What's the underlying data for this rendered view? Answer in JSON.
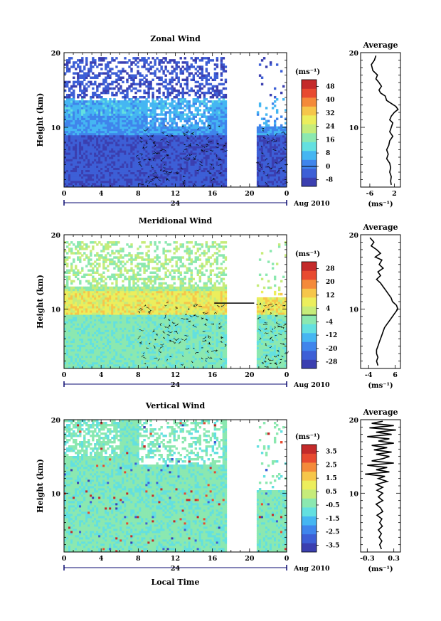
{
  "figure": {
    "xlabel": "Local Time",
    "date_label": "Aug 2010",
    "day_label": "24"
  },
  "chart_data": [
    {
      "type": "heatmap",
      "title": "Zonal Wind",
      "ylabel": "Height (km)",
      "ylim": [
        2,
        20
      ],
      "yticks": [
        "20",
        "10"
      ],
      "xticks": [
        "0",
        "4",
        "8",
        "12",
        "16",
        "20",
        "0"
      ],
      "unit": "(ms⁻¹)",
      "colorbar": {
        "ticks": [
          "48",
          "40",
          "32",
          "24",
          "16",
          "8",
          "0",
          "-8"
        ],
        "range": [
          -12,
          52
        ],
        "zero_line": 0
      },
      "data_gap_hours": [
        17.6,
        20.8
      ],
      "profile": {
        "title": "Average",
        "xticks": [
          "-6",
          "2"
        ],
        "xlim": [
          -9,
          4
        ],
        "unit": "(ms⁻¹)",
        "yticks": [
          "20",
          "10"
        ],
        "points": [
          [
            -4,
            19.6
          ],
          [
            -4.5,
            19.0
          ],
          [
            -5.5,
            18.4
          ],
          [
            -5.0,
            17.6
          ],
          [
            -3.5,
            17.0
          ],
          [
            -4.0,
            16.5
          ],
          [
            -3.0,
            16.0
          ],
          [
            -2.2,
            15.5
          ],
          [
            -3.0,
            15.0
          ],
          [
            -2.5,
            14.6
          ],
          [
            -1.0,
            14.2
          ],
          [
            -0.5,
            13.6
          ],
          [
            1.0,
            13.2
          ],
          [
            2.5,
            12.8
          ],
          [
            3.2,
            12.4
          ],
          [
            2.0,
            12.0
          ],
          [
            1.0,
            11.5
          ],
          [
            0.5,
            11.0
          ],
          [
            1.5,
            10.6
          ],
          [
            1.0,
            10.0
          ],
          [
            0.5,
            9.4
          ],
          [
            1.5,
            8.8
          ],
          [
            0.5,
            8.2
          ],
          [
            0.2,
            7.6
          ],
          [
            -0.5,
            7.0
          ],
          [
            0.0,
            6.4
          ],
          [
            -0.5,
            5.8
          ],
          [
            0.5,
            5.2
          ],
          [
            0.8,
            4.6
          ],
          [
            0.5,
            4.0
          ],
          [
            1.0,
            3.4
          ],
          [
            0.8,
            2.8
          ],
          [
            1.0,
            2.3
          ]
        ]
      }
    },
    {
      "type": "heatmap",
      "title": "Meridional Wind",
      "ylabel": "Height (km)",
      "ylim": [
        2,
        20
      ],
      "yticks": [
        "20",
        "10"
      ],
      "xticks": [
        "0",
        "4",
        "8",
        "12",
        "16",
        "20",
        "0"
      ],
      "unit": "(ms⁻¹)",
      "colorbar": {
        "ticks": [
          "28",
          "20",
          "12",
          "4",
          "-4",
          "-12",
          "-20",
          "-28"
        ],
        "range": [
          -32,
          32
        ],
        "zero_line": 0
      },
      "data_gap_hours": [
        17.6,
        20.8
      ],
      "profile": {
        "title": "Average",
        "xticks": [
          "-4",
          "6"
        ],
        "xlim": [
          -7,
          8
        ],
        "unit": "(ms⁻¹)",
        "yticks": [
          "20",
          "10"
        ],
        "points": [
          [
            -3.5,
            19.6
          ],
          [
            -2.0,
            19.0
          ],
          [
            -3.0,
            18.5
          ],
          [
            -1.0,
            18.0
          ],
          [
            0.5,
            17.5
          ],
          [
            -1.5,
            17.0
          ],
          [
            1.0,
            16.6
          ],
          [
            0.0,
            16.0
          ],
          [
            1.5,
            15.5
          ],
          [
            -0.5,
            15.0
          ],
          [
            0.5,
            14.5
          ],
          [
            -1.0,
            14.0
          ],
          [
            0.5,
            13.5
          ],
          [
            1.5,
            13.0
          ],
          [
            2.5,
            12.5
          ],
          [
            3.5,
            12.0
          ],
          [
            4.5,
            11.5
          ],
          [
            5.0,
            11.0
          ],
          [
            6.5,
            10.5
          ],
          [
            7.0,
            10.0
          ],
          [
            6.0,
            9.5
          ],
          [
            5.0,
            9.0
          ],
          [
            4.0,
            8.5
          ],
          [
            3.0,
            8.0
          ],
          [
            2.0,
            7.5
          ],
          [
            1.5,
            7.0
          ],
          [
            1.0,
            6.5
          ],
          [
            0.5,
            6.0
          ],
          [
            0.0,
            5.5
          ],
          [
            -0.5,
            5.0
          ],
          [
            -1.0,
            4.5
          ],
          [
            -1.0,
            4.0
          ],
          [
            -0.5,
            3.5
          ],
          [
            -1.0,
            3.0
          ],
          [
            -0.5,
            2.4
          ]
        ]
      }
    },
    {
      "type": "heatmap",
      "title": "Vertical Wind",
      "ylabel": "Height (km)",
      "ylim": [
        2,
        20
      ],
      "yticks": [
        "20",
        "10"
      ],
      "xticks": [
        "0",
        "4",
        "8",
        "12",
        "16",
        "20",
        "0"
      ],
      "unit": "(ms⁻¹)",
      "colorbar": {
        "ticks": [
          "3.5",
          "2.5",
          "1.5",
          "0.5",
          "-0.5",
          "-1.5",
          "-2.5",
          "-3.5"
        ],
        "range": [
          -4,
          4
        ],
        "zero_line": null
      },
      "data_gap_hours": [
        17.6,
        20.8
      ],
      "profile": {
        "title": "Average",
        "xticks": [
          "-0.3",
          "0.3"
        ],
        "xlim": [
          -0.45,
          0.45
        ],
        "unit": "(ms⁻¹)",
        "yticks": [
          "20",
          "10"
        ],
        "points": [
          [
            0.05,
            19.8
          ],
          [
            -0.2,
            19.5
          ],
          [
            0.3,
            19.2
          ],
          [
            -0.25,
            18.9
          ],
          [
            0.35,
            18.6
          ],
          [
            -0.1,
            18.3
          ],
          [
            0.25,
            18.0
          ],
          [
            -0.3,
            17.7
          ],
          [
            0.2,
            17.4
          ],
          [
            -0.05,
            17.1
          ],
          [
            0.3,
            16.8
          ],
          [
            -0.2,
            16.5
          ],
          [
            0.15,
            16.2
          ],
          [
            -0.15,
            15.9
          ],
          [
            0.25,
            15.6
          ],
          [
            -0.1,
            15.3
          ],
          [
            0.2,
            15.0
          ],
          [
            0.05,
            14.7
          ],
          [
            -0.2,
            14.4
          ],
          [
            0.3,
            14.1
          ],
          [
            -0.3,
            13.8
          ],
          [
            0.15,
            13.5
          ],
          [
            -0.1,
            13.2
          ],
          [
            0.2,
            12.9
          ],
          [
            -0.35,
            12.6
          ],
          [
            0.1,
            12.3
          ],
          [
            -0.05,
            12.0
          ],
          [
            0.15,
            11.6
          ],
          [
            -0.1,
            11.2
          ],
          [
            0.05,
            10.8
          ],
          [
            -0.08,
            10.4
          ],
          [
            0.05,
            10.0
          ],
          [
            -0.05,
            9.5
          ],
          [
            0.05,
            9.0
          ],
          [
            -0.1,
            8.5
          ],
          [
            0.0,
            8.0
          ],
          [
            0.05,
            7.5
          ],
          [
            -0.08,
            7.0
          ],
          [
            0.03,
            6.5
          ],
          [
            -0.02,
            6.0
          ],
          [
            0.04,
            5.5
          ],
          [
            -0.05,
            5.0
          ],
          [
            0.02,
            4.5
          ],
          [
            -0.03,
            4.0
          ],
          [
            0.03,
            3.5
          ],
          [
            -0.02,
            3.0
          ],
          [
            0.02,
            2.4
          ]
        ]
      }
    }
  ]
}
